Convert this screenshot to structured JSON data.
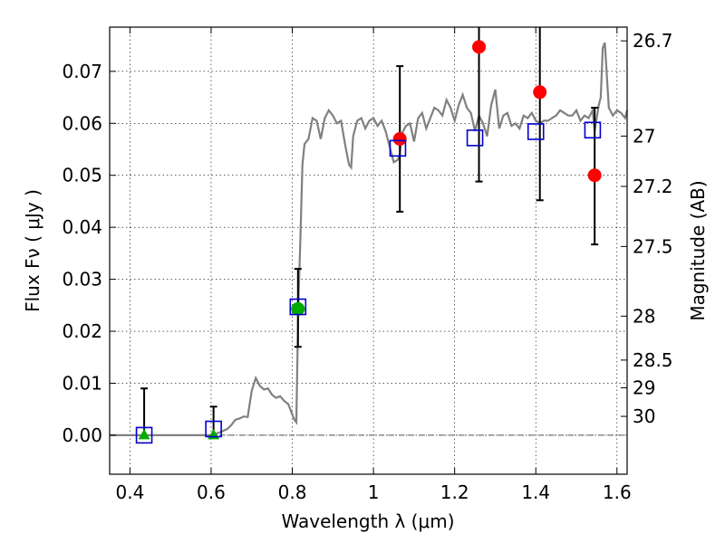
{
  "chart_data": {
    "type": "scatter",
    "xlabel": "Wavelength  λ (μm)",
    "ylabel": "Flux  Fν  ( μJy )",
    "y2label": "Magnitude (AB)",
    "xlim": [
      0.35,
      1.625
    ],
    "ylim": [
      -0.0075,
      0.0785
    ],
    "grid": true,
    "xticks": [
      0.4,
      0.6,
      0.8,
      1.0,
      1.2,
      1.4,
      1.6
    ],
    "xtick_labels": [
      "0.4",
      "0.6",
      "0.8",
      "1",
      "1.2",
      "1.4",
      "1.6"
    ],
    "yticks": [
      0.0,
      0.01,
      0.02,
      0.03,
      0.04,
      0.05,
      0.06,
      0.07
    ],
    "ytick_labels": [
      "0.00",
      "0.01",
      "0.02",
      "0.03",
      "0.04",
      "0.05",
      "0.06",
      "0.07"
    ],
    "mag_ticks": [
      {
        "label": "26.7",
        "mag": 26.7
      },
      {
        "label": "27",
        "mag": 27.0
      },
      {
        "label": "27.2",
        "mag": 27.2
      },
      {
        "label": "27.5",
        "mag": 27.5
      },
      {
        "label": "28",
        "mag": 28.0
      },
      {
        "label": "28.5",
        "mag": 28.5
      },
      {
        "label": "29",
        "mag": 29.0
      },
      {
        "label": "30",
        "mag": 30.0
      }
    ],
    "colors": {
      "model": "#808080",
      "model_points": "#0000cc",
      "detections": "#ff0000",
      "low_sn": "#00aa00",
      "errorbars": "#000000",
      "zero_line": "#555555"
    },
    "series": [
      {
        "kind": "model-spectrum",
        "x": [
          0.35,
          0.6,
          0.62,
          0.64,
          0.65,
          0.66,
          0.67,
          0.68,
          0.69,
          0.7,
          0.71,
          0.72,
          0.73,
          0.74,
          0.75,
          0.76,
          0.77,
          0.78,
          0.79,
          0.8,
          0.805,
          0.81,
          0.812,
          0.815,
          0.82,
          0.825,
          0.83,
          0.84,
          0.85,
          0.86,
          0.87,
          0.88,
          0.89,
          0.9,
          0.91,
          0.92,
          0.93,
          0.94,
          0.945,
          0.95,
          0.96,
          0.97,
          0.98,
          0.99,
          1.0,
          1.01,
          1.02,
          1.03,
          1.04,
          1.05,
          1.06,
          1.065,
          1.07,
          1.08,
          1.09,
          1.1,
          1.11,
          1.12,
          1.13,
          1.14,
          1.15,
          1.16,
          1.17,
          1.18,
          1.19,
          1.2,
          1.21,
          1.22,
          1.23,
          1.24,
          1.25,
          1.26,
          1.27,
          1.28,
          1.29,
          1.3,
          1.31,
          1.32,
          1.33,
          1.34,
          1.35,
          1.36,
          1.37,
          1.38,
          1.39,
          1.4,
          1.41,
          1.42,
          1.43,
          1.44,
          1.45,
          1.46,
          1.47,
          1.48,
          1.49,
          1.5,
          1.51,
          1.52,
          1.53,
          1.54,
          1.545,
          1.55,
          1.555,
          1.56,
          1.565,
          1.57,
          1.58,
          1.59,
          1.6,
          1.61,
          1.62,
          1.625
        ],
        "y": [
          0.0,
          0.0,
          0.0005,
          0.0012,
          0.002,
          0.003,
          0.0032,
          0.0036,
          0.0035,
          0.0085,
          0.011,
          0.0095,
          0.0088,
          0.009,
          0.0078,
          0.0072,
          0.0075,
          0.0066,
          0.006,
          0.004,
          0.003,
          0.0025,
          0.012,
          0.025,
          0.038,
          0.052,
          0.056,
          0.057,
          0.061,
          0.0605,
          0.057,
          0.061,
          0.0625,
          0.0615,
          0.06,
          0.0605,
          0.056,
          0.052,
          0.0515,
          0.0575,
          0.0605,
          0.061,
          0.059,
          0.0605,
          0.061,
          0.0595,
          0.0605,
          0.0585,
          0.0555,
          0.0525,
          0.053,
          0.054,
          0.058,
          0.0595,
          0.06,
          0.0565,
          0.061,
          0.062,
          0.059,
          0.061,
          0.063,
          0.0625,
          0.0615,
          0.0645,
          0.063,
          0.0605,
          0.0635,
          0.0655,
          0.063,
          0.062,
          0.0585,
          0.0615,
          0.06,
          0.0575,
          0.0635,
          0.0665,
          0.059,
          0.0615,
          0.062,
          0.0595,
          0.06,
          0.059,
          0.0615,
          0.061,
          0.062,
          0.0605,
          0.06,
          0.0605,
          0.0605,
          0.061,
          0.0615,
          0.0625,
          0.062,
          0.0615,
          0.0615,
          0.0625,
          0.0605,
          0.0615,
          0.061,
          0.0625,
          0.0585,
          0.061,
          0.0635,
          0.065,
          0.0745,
          0.0755,
          0.063,
          0.0615,
          0.0625,
          0.062,
          0.061,
          0.0625
        ]
      },
      {
        "kind": "model-photometry",
        "marker": "open-square",
        "x": [
          0.435,
          0.606,
          0.814,
          1.06,
          1.25,
          1.4,
          1.54
        ],
        "y": [
          0.0,
          0.0012,
          0.0247,
          0.0552,
          0.0572,
          0.0584,
          0.0587
        ]
      },
      {
        "kind": "detections",
        "marker": "filled-circle",
        "x": [
          0.814,
          1.065,
          1.26,
          1.41,
          1.545
        ],
        "y": [
          0.0243,
          0.057,
          0.0747,
          0.066,
          0.05
        ],
        "yerr_low": [
          0.017,
          0.043,
          0.0488,
          0.0452,
          0.0367
        ],
        "yerr_high": [
          0.032,
          0.071,
          0.0785,
          0.0785,
          0.063
        ],
        "colors": [
          "#00aa00",
          "#ff0000",
          "#ff0000",
          "#ff0000",
          "#ff0000"
        ]
      },
      {
        "kind": "non-detections",
        "marker": "filled-triangle",
        "x": [
          0.435,
          0.606
        ],
        "y": [
          0.0,
          0.0
        ],
        "yerr_low": [
          -0.0002,
          -0.0002
        ],
        "yerr_high": [
          0.009,
          0.0055
        ]
      }
    ]
  }
}
